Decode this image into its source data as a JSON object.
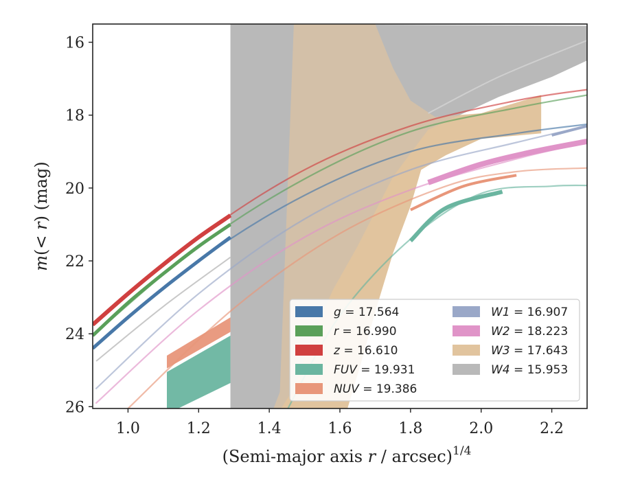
{
  "chart_data": {
    "type": "line",
    "xlabel": "(Semi-major axis r / arcsec)",
    "xlabel_exponent": "1/4",
    "ylabel": "m(< r) (mag)",
    "xlim": [
      0.9,
      2.3
    ],
    "ylim": [
      26.05,
      15.5
    ],
    "y_inverted": true,
    "x_ticks": [
      "1.0",
      "1.2",
      "1.4",
      "1.6",
      "1.8",
      "2.0",
      "2.2"
    ],
    "y_ticks": [
      "16",
      "18",
      "20",
      "22",
      "24",
      "26"
    ],
    "legend_position": "lower-right",
    "legend_columns": 2,
    "series": [
      {
        "name": "g = 17.564",
        "band": "g",
        "color": "#4878a8",
        "style": "curve",
        "faint_x": [
          0.9,
          1.2,
          1.5,
          1.8,
          2.1,
          2.3
        ],
        "faint_y": [
          24.4,
          22.0,
          20.2,
          19.0,
          18.5,
          18.25
        ],
        "strong_x": [
          0.9,
          1.0,
          1.1,
          1.2,
          1.29
        ],
        "strong_y": [
          24.4,
          23.55,
          22.75,
          22.0,
          21.35
        ],
        "strong_width": 5
      },
      {
        "name": "r = 16.990",
        "band": "r",
        "color": "#5aa05a",
        "style": "curve",
        "faint_x": [
          0.9,
          1.2,
          1.5,
          1.8,
          2.1,
          2.3
        ],
        "faint_y": [
          24.05,
          21.6,
          19.75,
          18.45,
          17.8,
          17.45
        ],
        "strong_x": [
          0.9,
          1.0,
          1.1,
          1.2,
          1.29
        ],
        "strong_y": [
          24.05,
          23.15,
          22.35,
          21.6,
          21.0
        ],
        "strong_width": 5
      },
      {
        "name": "z = 16.610",
        "band": "z",
        "color": "#d04040",
        "style": "curve",
        "faint_x": [
          0.9,
          1.2,
          1.5,
          1.8,
          2.1,
          2.3
        ],
        "faint_y": [
          23.75,
          21.35,
          19.5,
          18.3,
          17.6,
          17.3
        ],
        "strong_x": [
          0.9,
          1.0,
          1.1,
          1.2,
          1.29
        ],
        "strong_y": [
          23.75,
          22.9,
          22.1,
          21.35,
          20.75
        ],
        "strong_width": 6
      },
      {
        "name": "FUV = 19.931",
        "band": "FUV",
        "color": "#6ab5a0",
        "style": "curve+band",
        "faint_x": [
          1.45,
          1.6,
          1.8,
          2.0,
          2.2,
          2.3
        ],
        "faint_y": [
          26.1,
          23.5,
          21.4,
          20.15,
          19.95,
          19.93
        ],
        "strong_x": [
          1.8,
          1.9,
          2.06
        ],
        "strong_y": [
          21.45,
          20.55,
          20.1
        ],
        "strong_width": 6,
        "band_x": [
          1.11,
          1.29
        ],
        "band_upper": [
          25.05,
          24.05
        ],
        "band_lower": [
          26.2,
          25.35
        ]
      },
      {
        "name": "NUV = 19.386",
        "band": "NUV",
        "color": "#e8967a",
        "style": "curve+band",
        "faint_x": [
          1.0,
          1.3,
          1.6,
          1.9,
          2.1,
          2.3
        ],
        "faint_y": [
          26.05,
          23.3,
          21.25,
          19.95,
          19.55,
          19.45
        ],
        "strong_x": [
          1.8,
          1.95,
          2.1
        ],
        "strong_y": [
          20.6,
          19.95,
          19.65
        ],
        "strong_width": 4,
        "band_x": [
          1.11,
          1.29
        ],
        "band_upper": [
          24.6,
          23.55
        ],
        "band_lower": [
          24.95,
          23.95
        ]
      },
      {
        "name": "W1 = 16.907",
        "band": "W1",
        "color": "#9aa8c8",
        "style": "curve",
        "faint_x": [
          0.91,
          1.2,
          1.5,
          1.8,
          2.1,
          2.3
        ],
        "faint_y": [
          25.5,
          22.9,
          20.85,
          19.5,
          18.75,
          18.3
        ],
        "strong_x": [
          2.2,
          2.3
        ],
        "strong_y": [
          18.55,
          18.3
        ],
        "strong_width": 4
      },
      {
        "name": "W2 = 18.223",
        "band": "W2",
        "color": "#e094c8",
        "style": "curve",
        "faint_x": [
          0.91,
          1.2,
          1.5,
          1.8,
          2.1,
          2.3
        ],
        "faint_y": [
          25.9,
          23.35,
          21.35,
          20.05,
          19.2,
          18.75
        ],
        "strong_x": [
          1.85,
          2.0,
          2.15,
          2.3
        ],
        "strong_y": [
          19.85,
          19.35,
          19.0,
          18.72
        ],
        "strong_width": 8
      },
      {
        "name": "W3 = 17.643",
        "band": "W3",
        "color": "#e1c49e",
        "style": "band",
        "band_upper_pts": [
          [
            1.47,
            15.4
          ],
          [
            1.53,
            15.5
          ],
          [
            1.7,
            15.5
          ],
          [
            1.75,
            16.7
          ],
          [
            1.8,
            17.6
          ],
          [
            1.87,
            18.05
          ],
          [
            2.0,
            17.95
          ],
          [
            2.17,
            17.45
          ]
        ],
        "band_lower_pts": [
          [
            2.17,
            18.5
          ],
          [
            2.0,
            18.65
          ],
          [
            1.9,
            19.1
          ],
          [
            1.83,
            19.5
          ],
          [
            1.8,
            20.5
          ],
          [
            1.75,
            21.8
          ],
          [
            1.7,
            23.4
          ],
          [
            1.66,
            24.8
          ],
          [
            1.62,
            26.1
          ],
          [
            1.41,
            26.1
          ],
          [
            1.43,
            25.6
          ]
        ]
      },
      {
        "name": "W4 = 15.953",
        "band": "W4",
        "color": "#b9b9b9",
        "style": "band",
        "band_upper_pts": [
          [
            1.29,
            15.5
          ],
          [
            2.3,
            15.55
          ]
        ],
        "band_lower_pts": [
          [
            2.3,
            16.5
          ],
          [
            2.2,
            16.95
          ],
          [
            2.05,
            17.5
          ],
          [
            1.95,
            17.95
          ],
          [
            1.85,
            18.4
          ],
          [
            1.75,
            19.7
          ],
          [
            1.65,
            21.6
          ],
          [
            1.58,
            22.8
          ],
          [
            1.52,
            24.1
          ],
          [
            1.47,
            25.5
          ],
          [
            1.43,
            26.1
          ],
          [
            1.29,
            26.1
          ]
        ],
        "thin_x": [
          1.85,
          2.05,
          2.3
        ],
        "thin_y": [
          17.95,
          16.95,
          15.95
        ]
      }
    ],
    "legend": [
      {
        "label_main": "g",
        "label_value": " = 17.564",
        "color": "#4878a8",
        "col": 0,
        "row": 0
      },
      {
        "label_main": "r",
        "label_value": " = 16.990",
        "color": "#5aa05a",
        "col": 0,
        "row": 1
      },
      {
        "label_main": "z",
        "label_value": " = 16.610",
        "color": "#d04040",
        "col": 0,
        "row": 2
      },
      {
        "label_main": "FUV",
        "label_value": " = 19.931",
        "color": "#6ab5a0",
        "col": 0,
        "row": 3
      },
      {
        "label_main": "NUV",
        "label_value": " = 19.386",
        "color": "#e8967a",
        "col": 0,
        "row": 4
      },
      {
        "label_main": "W1",
        "label_value": " = 16.907",
        "color": "#9aa8c8",
        "col": 1,
        "row": 0
      },
      {
        "label_main": "W2",
        "label_value": " = 18.223",
        "color": "#e094c8",
        "col": 1,
        "row": 1
      },
      {
        "label_main": "W3",
        "label_value": " = 17.643",
        "color": "#e1c49e",
        "col": 1,
        "row": 2
      },
      {
        "label_main": "W4",
        "label_value": " = 15.953",
        "color": "#b9b9b9",
        "col": 1,
        "row": 3
      }
    ]
  }
}
